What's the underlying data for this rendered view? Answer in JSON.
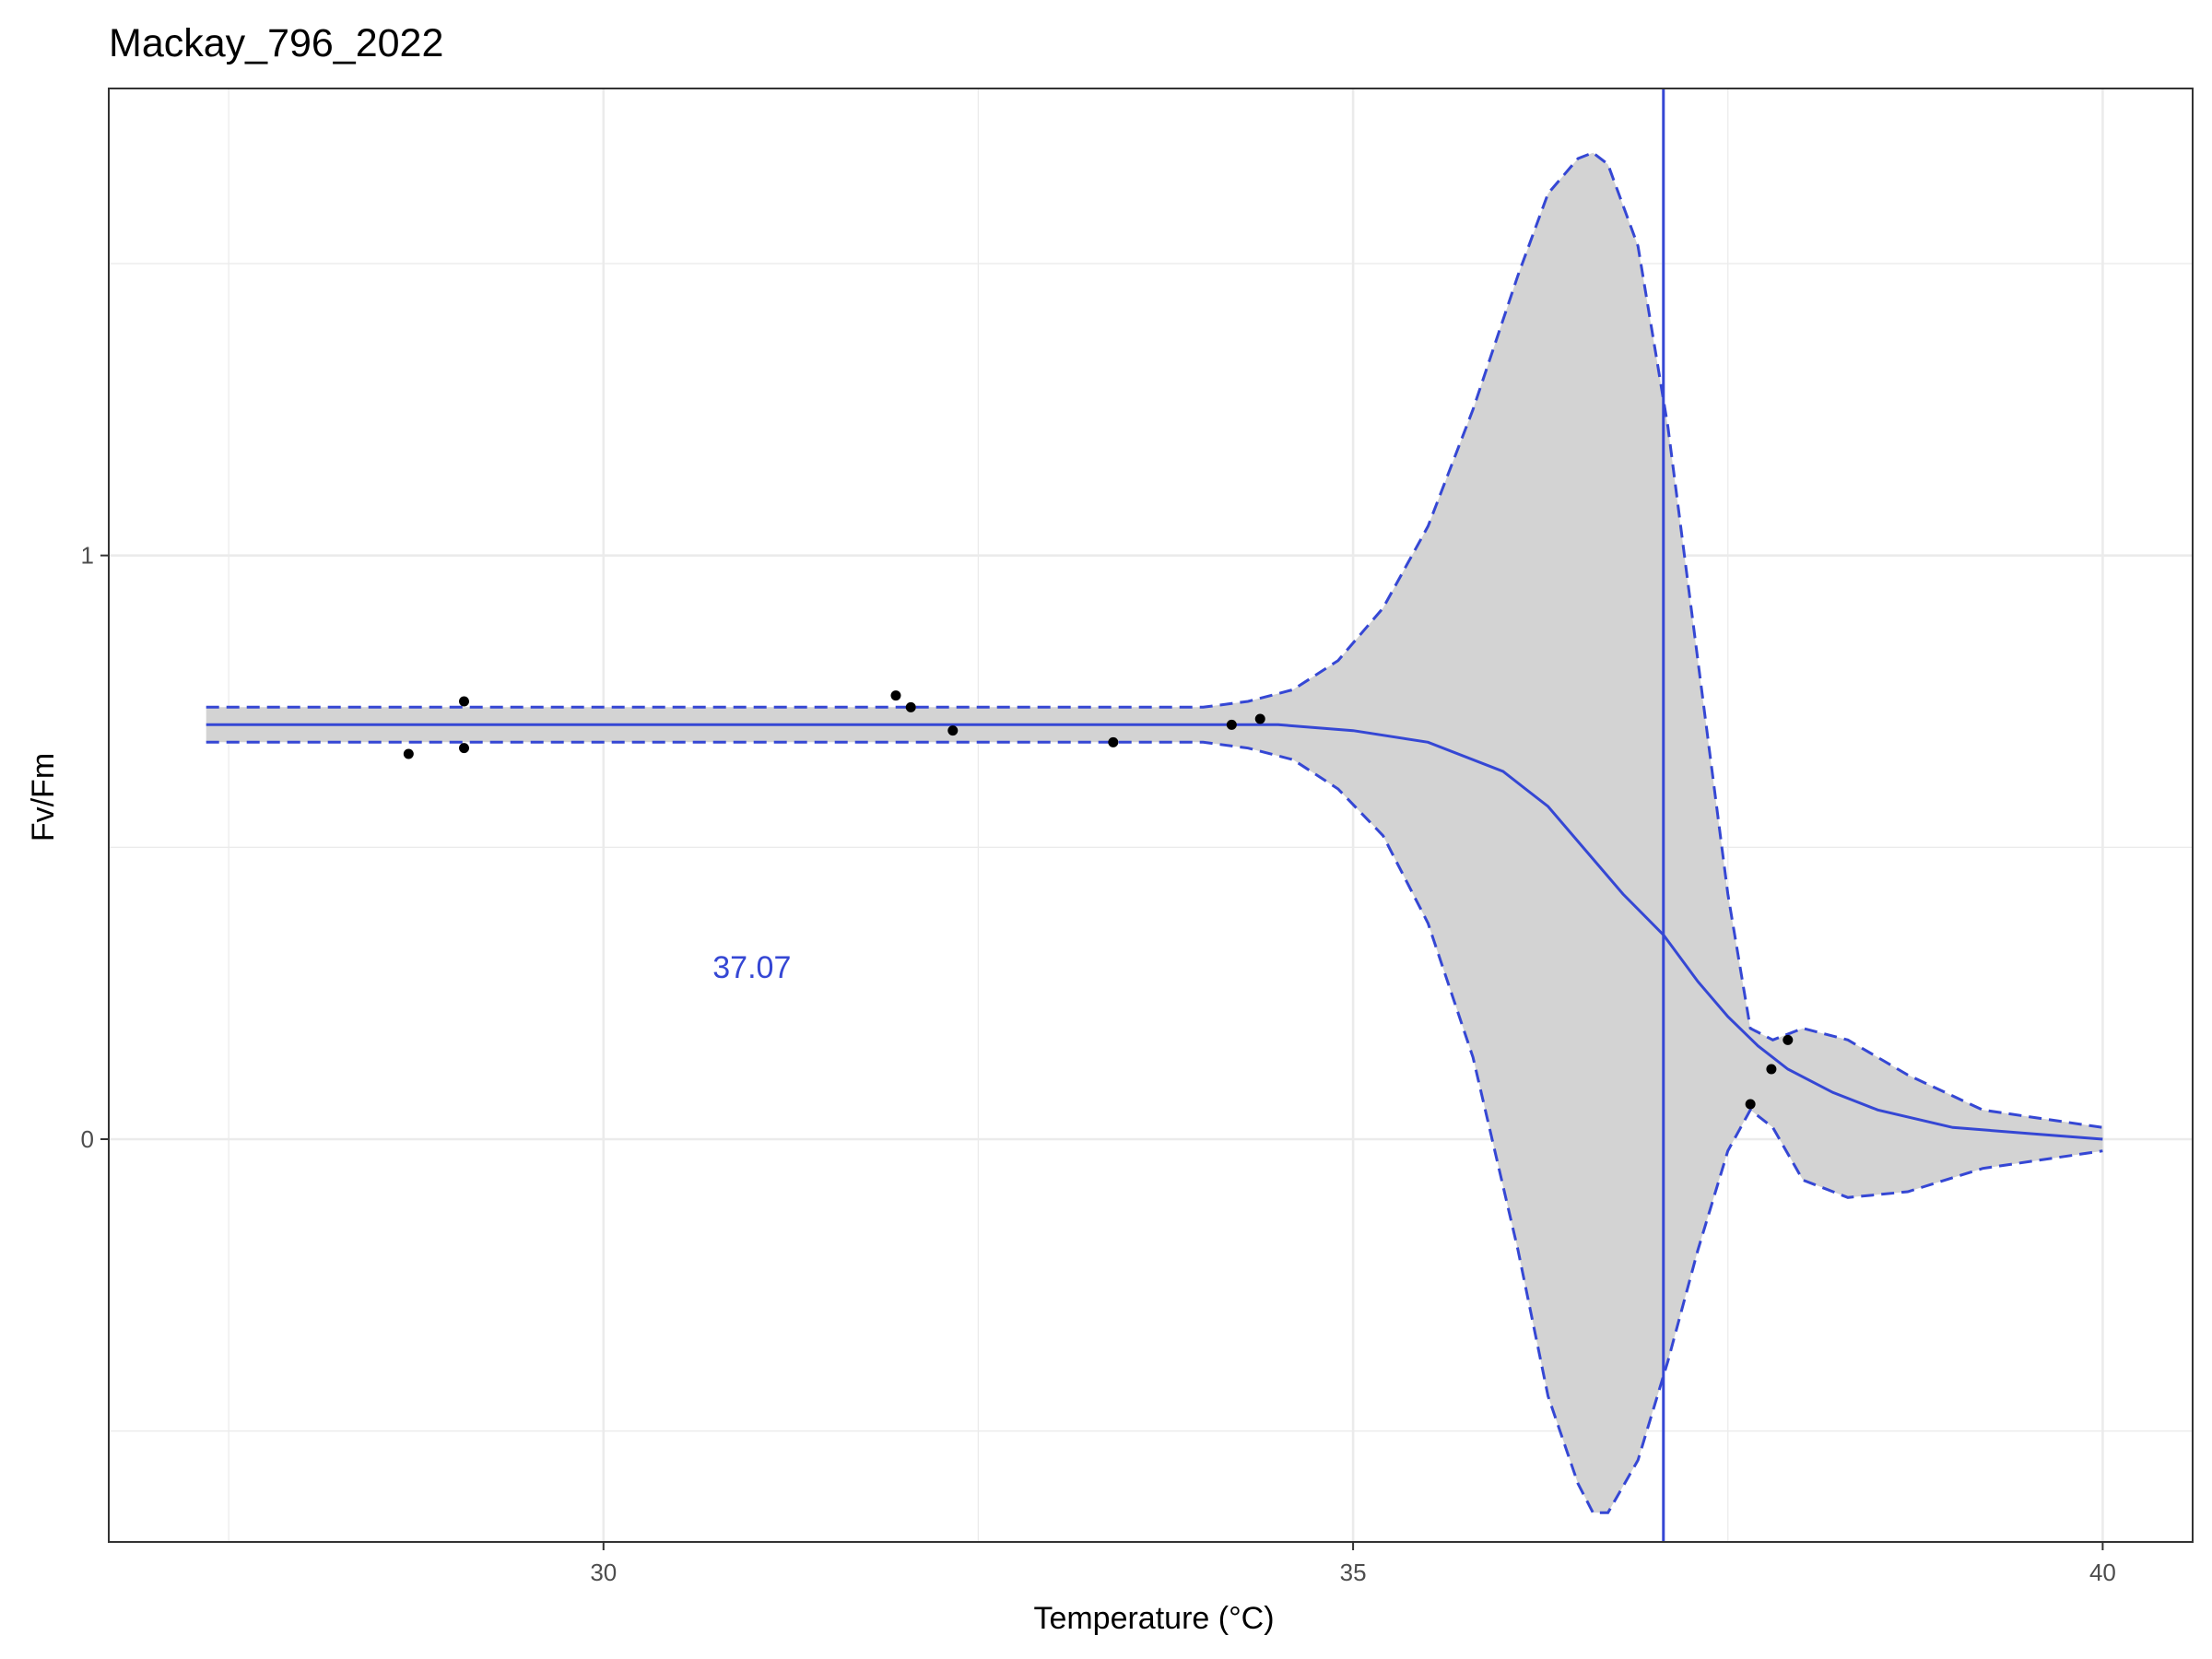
{
  "chart_data": {
    "type": "line",
    "title": "Mackay_796_2022",
    "xlabel": "Temperature (°C)",
    "ylabel": "Fv/Fm",
    "xlim": [
      26.7,
      40.6
    ],
    "ylim": [
      -0.69,
      1.8
    ],
    "x_ticks": [
      {
        "value": 30,
        "label": "30"
      },
      {
        "value": 35,
        "label": "35"
      },
      {
        "value": 40,
        "label": "40"
      }
    ],
    "y_ticks": [
      {
        "value": 0,
        "label": "0"
      },
      {
        "value": 1,
        "label": "1"
      }
    ],
    "grid": true,
    "points": [
      {
        "x": 28.7,
        "y": 0.66
      },
      {
        "x": 29.07,
        "y": 0.75
      },
      {
        "x": 29.07,
        "y": 0.67
      },
      {
        "x": 31.95,
        "y": 0.76
      },
      {
        "x": 32.05,
        "y": 0.74
      },
      {
        "x": 32.33,
        "y": 0.7
      },
      {
        "x": 33.4,
        "y": 0.68
      },
      {
        "x": 34.19,
        "y": 0.71
      },
      {
        "x": 34.38,
        "y": 0.72
      },
      {
        "x": 37.65,
        "y": 0.06
      },
      {
        "x": 37.79,
        "y": 0.12
      },
      {
        "x": 37.9,
        "y": 0.17
      }
    ],
    "fit": {
      "x": [
        27.35,
        34.0,
        34.5,
        35.0,
        35.5,
        36.0,
        36.3,
        36.6,
        36.8,
        37.07,
        37.3,
        37.5,
        37.7,
        37.9,
        38.2,
        38.5,
        39.0,
        39.5,
        40.0
      ],
      "y": [
        0.71,
        0.71,
        0.71,
        0.7,
        0.68,
        0.63,
        0.57,
        0.48,
        0.42,
        0.35,
        0.27,
        0.21,
        0.16,
        0.12,
        0.08,
        0.05,
        0.02,
        0.01,
        0.0
      ]
    },
    "ci_upper": {
      "x": [
        27.35,
        34.0,
        34.3,
        34.6,
        34.9,
        35.2,
        35.5,
        35.8,
        36.1,
        36.3,
        36.5,
        36.6,
        36.7,
        36.9,
        37.1,
        37.3,
        37.5,
        37.65,
        37.8,
        38.0,
        38.3,
        38.7,
        39.2,
        40.0
      ],
      "y": [
        0.74,
        0.74,
        0.75,
        0.77,
        0.82,
        0.91,
        1.05,
        1.25,
        1.48,
        1.62,
        1.68,
        1.69,
        1.67,
        1.53,
        1.22,
        0.82,
        0.42,
        0.19,
        0.17,
        0.19,
        0.17,
        0.11,
        0.05,
        0.02
      ]
    },
    "ci_lower": {
      "x": [
        27.35,
        34.0,
        34.3,
        34.6,
        34.9,
        35.2,
        35.5,
        35.8,
        36.1,
        36.3,
        36.5,
        36.6,
        36.7,
        36.9,
        37.1,
        37.3,
        37.5,
        37.65,
        37.8,
        38.0,
        38.3,
        38.7,
        39.2,
        40.0
      ],
      "y": [
        0.68,
        0.68,
        0.67,
        0.65,
        0.6,
        0.52,
        0.37,
        0.14,
        -0.19,
        -0.44,
        -0.59,
        -0.64,
        -0.64,
        -0.55,
        -0.38,
        -0.19,
        -0.02,
        0.05,
        0.02,
        -0.07,
        -0.1,
        -0.09,
        -0.05,
        -0.02
      ]
    },
    "threshold": {
      "x": 37.07,
      "label": "37.07"
    },
    "annotation_pos": {
      "x": 30.99,
      "y": 0.295
    },
    "colors": {
      "line": "#3547d4",
      "ribbon": "#d3d3d3",
      "points": "#000000",
      "grid": "#ebebeb",
      "panel_border": "#333333"
    }
  }
}
